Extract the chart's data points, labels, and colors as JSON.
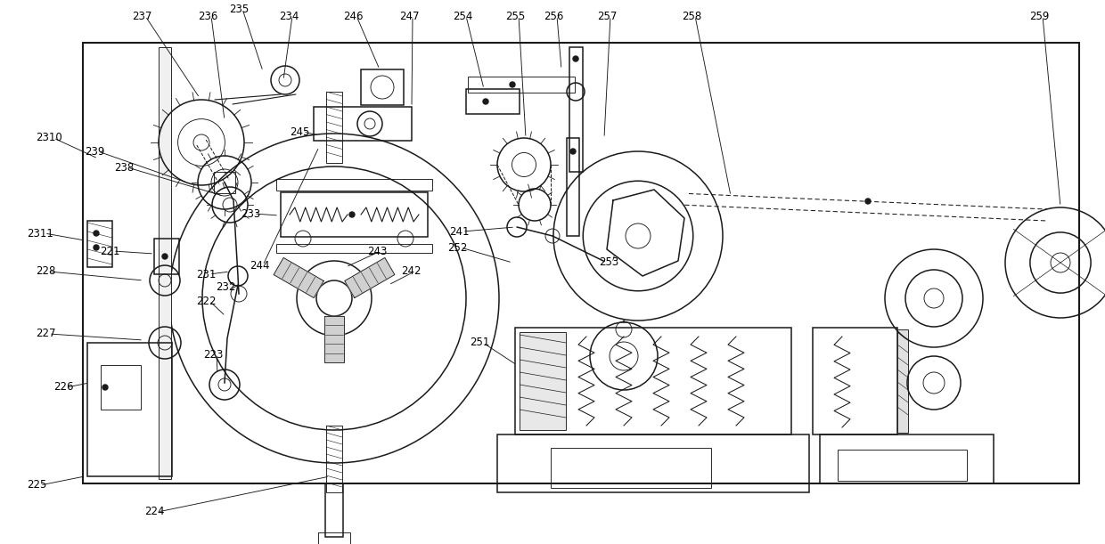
{
  "bg_color": "#ffffff",
  "line_color": "#1a1a1a",
  "fig_width": 12.4,
  "fig_height": 6.11,
  "dpi": 100
}
